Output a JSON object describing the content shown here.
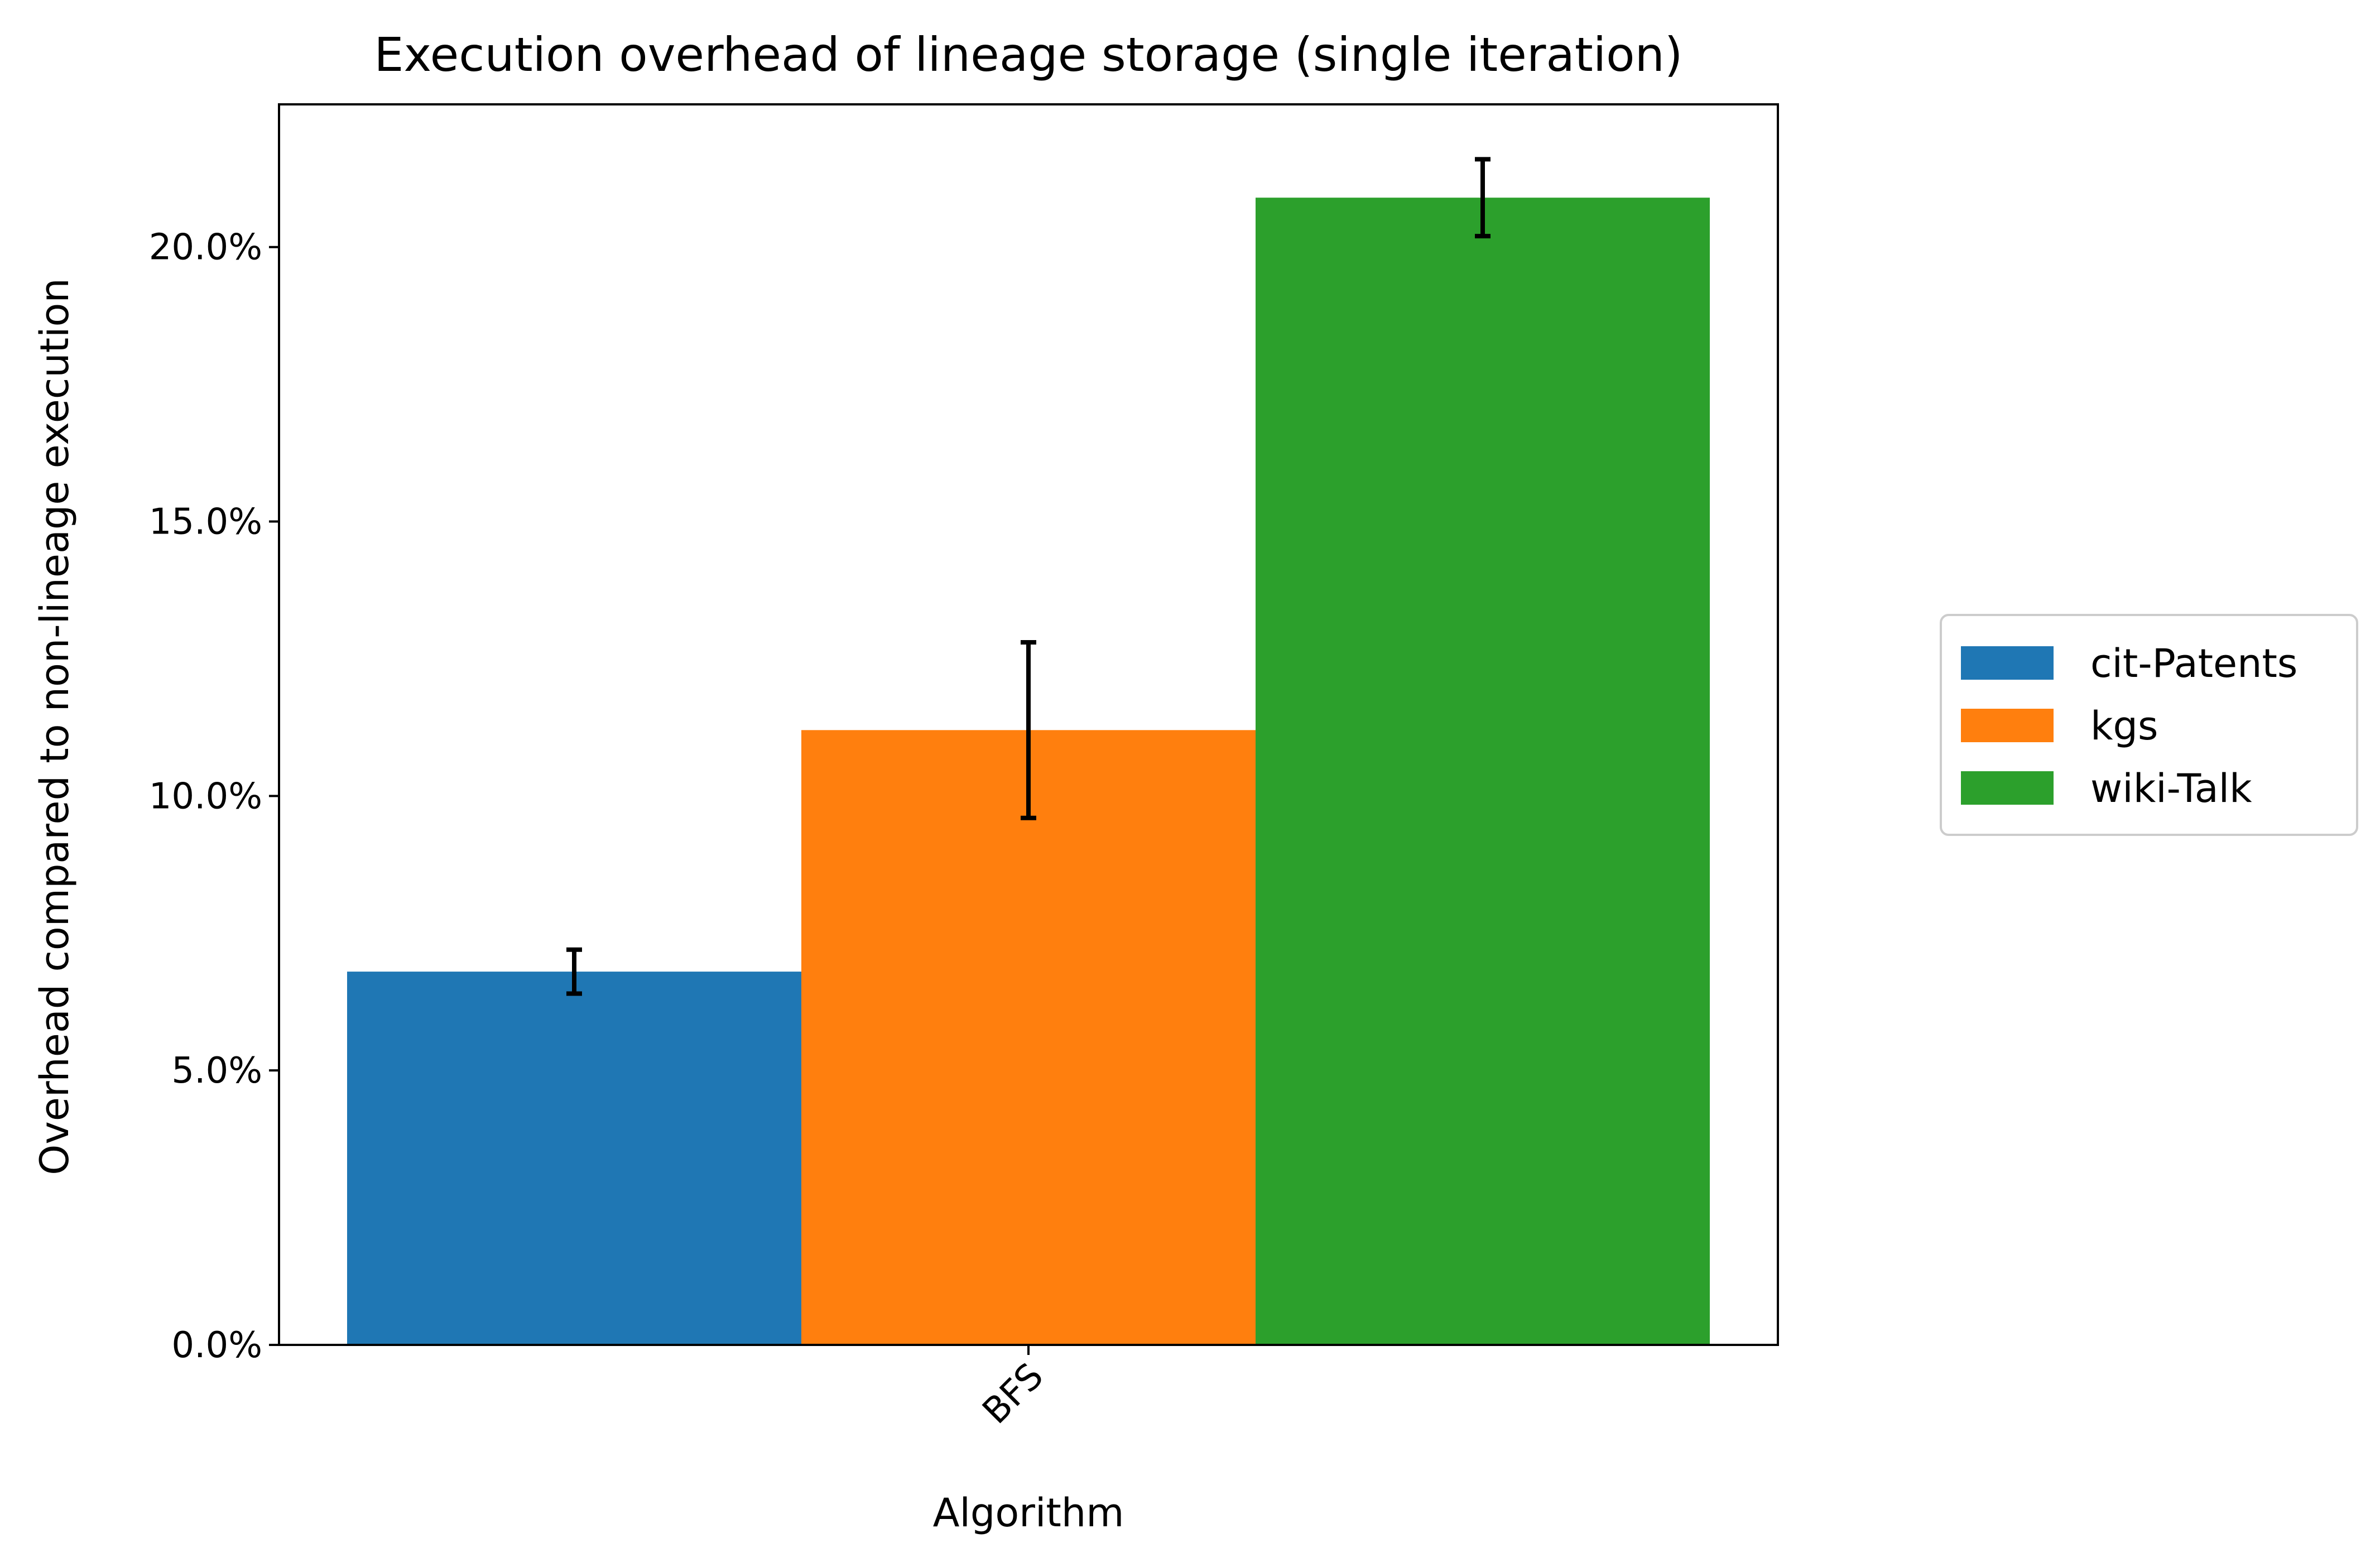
{
  "chart_data": {
    "type": "bar",
    "title": "Execution overhead of lineage storage (single iteration)",
    "xlabel": "Algorithm",
    "ylabel": "Overhead compared to non-lineage execution",
    "categories": [
      "BFS"
    ],
    "series": [
      {
        "name": "cit-Patents",
        "color": "#1f77b4",
        "values": [
          6.8
        ],
        "error": [
          [
            6.4,
            7.2
          ]
        ]
      },
      {
        "name": "kgs",
        "color": "#ff7f0e",
        "values": [
          11.2
        ],
        "error": [
          [
            9.6,
            12.8
          ]
        ]
      },
      {
        "name": "wiki-Talk",
        "color": "#2ca02c",
        "values": [
          20.9
        ],
        "error": [
          [
            20.2,
            21.6
          ]
        ]
      }
    ],
    "ylim": [
      0,
      22.6
    ],
    "yticks": [
      0,
      5,
      10,
      15,
      20
    ],
    "ytick_labels": [
      "0.0%",
      "5.0%",
      "10.0%",
      "15.0%",
      "20.0%"
    ],
    "x_tick_rotation": "45 degrees",
    "legend_position": "right, outside plot",
    "grid": false
  }
}
